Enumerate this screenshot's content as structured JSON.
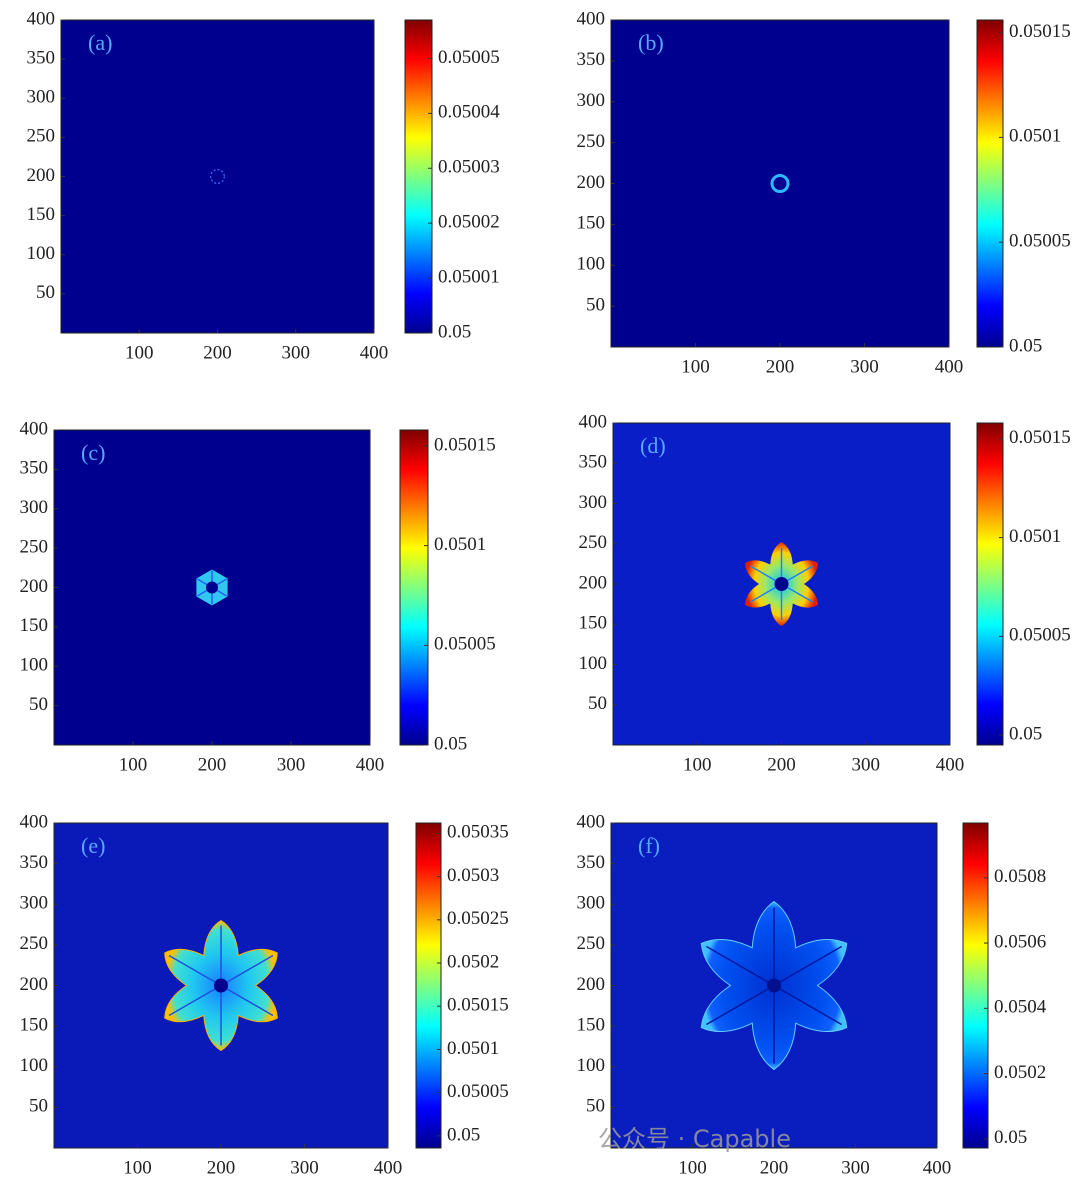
{
  "chart_data": [
    {
      "type": "heatmap",
      "panel_label": "(a)",
      "xlim": [
        0,
        400
      ],
      "xticks": [
        100,
        200,
        300,
        400
      ],
      "ylim": [
        0,
        400
      ],
      "yticks": [
        50,
        100,
        150,
        200,
        250,
        300,
        350,
        400
      ],
      "clim": [
        0.05,
        0.050057
      ],
      "cticks": [
        0.05,
        0.05001,
        0.05002,
        0.05003,
        0.05004,
        0.05005
      ]
    },
    {
      "type": "heatmap",
      "panel_label": "(b)",
      "xlim": [
        0,
        400
      ],
      "xticks": [
        100,
        200,
        300,
        400
      ],
      "ylim": [
        0,
        400
      ],
      "yticks": [
        50,
        100,
        150,
        200,
        250,
        300,
        350,
        400
      ],
      "clim": [
        0.05,
        0.050156
      ],
      "cticks": [
        0.05,
        0.05005,
        0.0501,
        0.05015
      ]
    },
    {
      "type": "heatmap",
      "panel_label": "(c)",
      "xlim": [
        0,
        400
      ],
      "xticks": [
        100,
        200,
        300,
        400
      ],
      "ylim": [
        0,
        400
      ],
      "yticks": [
        50,
        100,
        150,
        200,
        250,
        300,
        350,
        400
      ],
      "clim": [
        0.05,
        0.050158
      ],
      "cticks": [
        0.05,
        0.05005,
        0.0501,
        0.05015
      ]
    },
    {
      "type": "heatmap",
      "panel_label": "(d)",
      "xlim": [
        0,
        400
      ],
      "xticks": [
        100,
        200,
        300,
        400
      ],
      "ylim": [
        0,
        400
      ],
      "yticks": [
        50,
        100,
        150,
        200,
        250,
        300,
        350,
        400
      ],
      "clim": [
        0.049995,
        0.050158
      ],
      "cticks": [
        0.05,
        0.05005,
        0.0501,
        0.05015
      ]
    },
    {
      "type": "heatmap",
      "panel_label": "(e)",
      "xlim": [
        0,
        400
      ],
      "xticks": [
        100,
        200,
        300,
        400
      ],
      "ylim": [
        0,
        400
      ],
      "yticks": [
        50,
        100,
        150,
        200,
        250,
        300,
        350,
        400
      ],
      "clim": [
        0.049986,
        0.050362
      ],
      "cticks": [
        0.05,
        0.05005,
        0.0501,
        0.05015,
        0.0502,
        0.05025,
        0.0503,
        0.05035
      ]
    },
    {
      "type": "heatmap",
      "panel_label": "(f)",
      "xlim": [
        0,
        400
      ],
      "xticks": [
        100,
        200,
        300,
        400
      ],
      "ylim": [
        0,
        400
      ],
      "yticks": [
        50,
        100,
        150,
        200,
        250,
        300,
        350,
        400
      ],
      "clim": [
        0.049972,
        0.050968
      ],
      "cticks": [
        0.05,
        0.0502,
        0.0504,
        0.0506,
        0.0508
      ]
    }
  ],
  "watermark": "公众号 · Capable"
}
